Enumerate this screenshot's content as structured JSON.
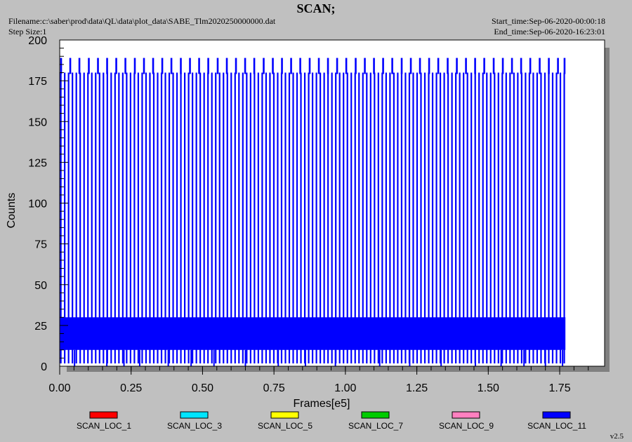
{
  "header": {
    "title": "SCAN;",
    "filename": "Filename:c:\\saber\\prod\\data\\QL\\data\\plot_data\\SABE_Tlm2020250000000.dat",
    "step_size": "Step Size:1",
    "start_time": "Start_time:Sep-06-2020-00:00:18",
    "end_time": "End_time:Sep-06-2020-16:23:01"
  },
  "version": "v2.5",
  "chart_data": {
    "type": "line",
    "title": "SCAN;",
    "xlabel": "Frames[e5]",
    "ylabel": "Counts",
    "xlim": [
      0,
      1.85
    ],
    "ylim": [
      0,
      200
    ],
    "x_ticks": [
      "0.00",
      "0.25",
      "0.50",
      "0.75",
      "1.00",
      "1.25",
      "1.50",
      "1.75"
    ],
    "x_tick_values": [
      0,
      0.25,
      0.5,
      0.75,
      1.0,
      1.25,
      1.5,
      1.75
    ],
    "y_ticks": [
      "0",
      "25",
      "50",
      "75",
      "100",
      "125",
      "150",
      "175",
      "200"
    ],
    "y_tick_values": [
      0,
      25,
      50,
      75,
      100,
      125,
      150,
      175,
      200
    ],
    "x_range_data": [
      0,
      1.77
    ],
    "baseline_band": [
      10,
      30
    ],
    "legend_position": "bottom",
    "series": [
      {
        "name": "SCAN_LOC_1",
        "color": "#ff0000"
      },
      {
        "name": "SCAN_LOC_3",
        "color": "#00e5ff"
      },
      {
        "name": "SCAN_LOC_5",
        "color": "#ffff00"
      },
      {
        "name": "SCAN_LOC_7",
        "color": "#00cc00"
      },
      {
        "name": "SCAN_LOC_9",
        "color": "#ff80c0"
      },
      {
        "name": "SCAN_LOC_11",
        "color": "#0000ff"
      }
    ],
    "main_spike_series": "SCAN_LOC_11",
    "main_spike_height": 180,
    "main_spike_count": 131,
    "tall_spike_height": 189,
    "tall_spikes_x": [
      0.005,
      0.037,
      0.069,
      0.102,
      0.134,
      0.166,
      0.198,
      0.23,
      0.263,
      0.295,
      0.327,
      0.359,
      0.391,
      0.424,
      0.456,
      0.488,
      0.52,
      0.553,
      0.585,
      0.617,
      0.649,
      0.681,
      0.714,
      0.746,
      0.778,
      0.81,
      0.842,
      0.875,
      0.907,
      0.939,
      0.971,
      1.003,
      1.036,
      1.068,
      1.1,
      1.132,
      1.164,
      1.197,
      1.229,
      1.261,
      1.293,
      1.325,
      1.358,
      1.39,
      1.422,
      1.454,
      1.486,
      1.519,
      1.551,
      1.583,
      1.615,
      1.647,
      1.68,
      1.712,
      1.744,
      1.767
    ],
    "dips_x": [
      0.052,
      0.165,
      0.225,
      0.28,
      0.38,
      0.46,
      0.54,
      0.65,
      0.765,
      0.86,
      0.965,
      1.12,
      1.225,
      1.335,
      1.455,
      1.545,
      1.625,
      1.7,
      1.76
    ]
  }
}
